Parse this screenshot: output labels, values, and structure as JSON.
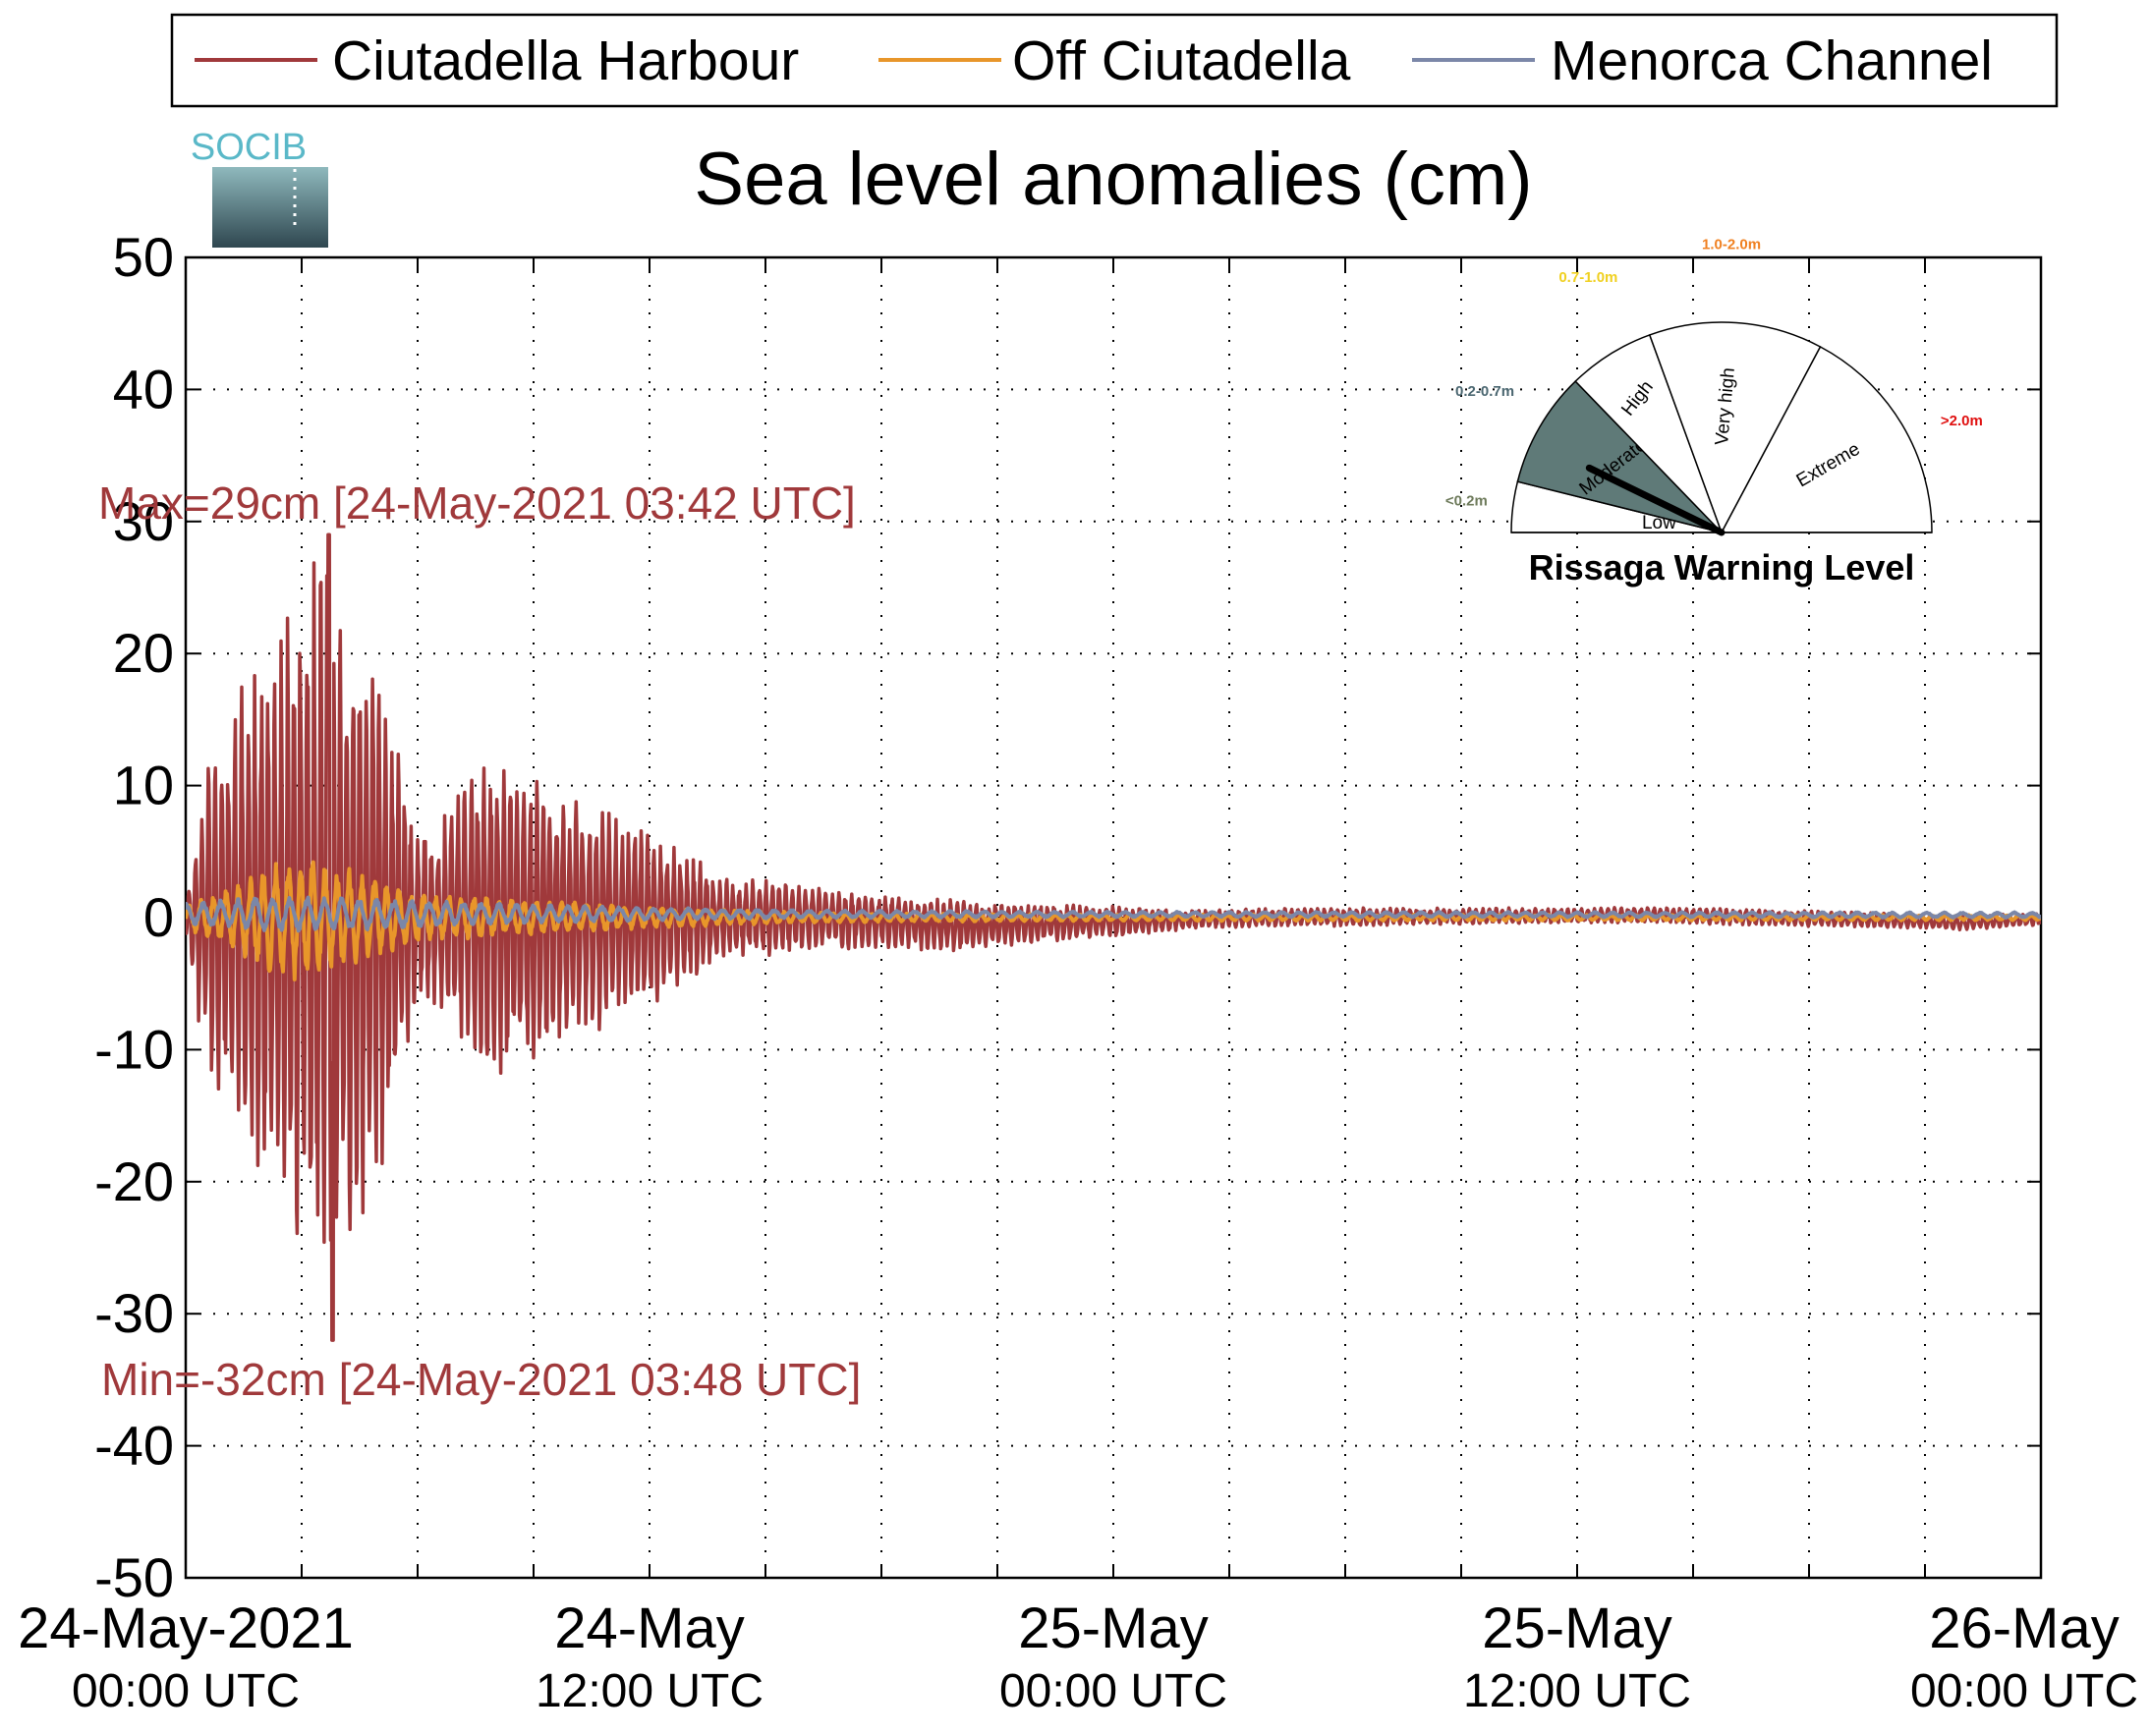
{
  "chart_data": {
    "type": "line",
    "title": "Sea level anomalies (cm)",
    "ylim": [
      -50,
      50
    ],
    "yticks": [
      50,
      40,
      30,
      20,
      10,
      0,
      -10,
      -20,
      -30,
      -40,
      -50
    ],
    "x_range_hours": [
      0,
      48
    ],
    "xtick_labels": [
      {
        "line1": "24-May-2021",
        "line2": "00:00 UTC"
      },
      {
        "line1": "24-May",
        "line2": "12:00 UTC"
      },
      {
        "line1": "25-May",
        "line2": "00:00 UTC"
      },
      {
        "line1": "25-May",
        "line2": "12:00 UTC"
      },
      {
        "line1": "26-May",
        "line2": "00:00 UTC"
      }
    ],
    "xtick_hours": [
      0,
      12,
      24,
      36,
      48
    ],
    "minor_grid_hours": [
      3,
      6,
      9,
      15,
      18,
      21,
      27,
      30,
      33,
      39,
      42,
      45
    ],
    "grid": true,
    "legend_position": "top",
    "series": [
      {
        "name": "Ciutadella Harbour",
        "color": "#a0393b",
        "envelope": [
          [
            0,
            1
          ],
          [
            0.5,
            12
          ],
          [
            1,
            14
          ],
          [
            1.5,
            18
          ],
          [
            2,
            20
          ],
          [
            2.5,
            22
          ],
          [
            3,
            28
          ],
          [
            3.5,
            28
          ],
          [
            4,
            25
          ],
          [
            4.5,
            25
          ],
          [
            5,
            20
          ],
          [
            5.5,
            14
          ],
          [
            6,
            7
          ],
          [
            6.5,
            7
          ],
          [
            7,
            10
          ],
          [
            7.5,
            12
          ],
          [
            8,
            13
          ],
          [
            8.5,
            12
          ],
          [
            9,
            12
          ],
          [
            9.5,
            11
          ],
          [
            10,
            10
          ],
          [
            11,
            8
          ],
          [
            12,
            7
          ],
          [
            13,
            5
          ],
          [
            14,
            3
          ],
          [
            15,
            3
          ],
          [
            16,
            2.5
          ],
          [
            18,
            2
          ],
          [
            20,
            2
          ],
          [
            22,
            1.5
          ],
          [
            24,
            1.2
          ],
          [
            26,
            0.7
          ],
          [
            30,
            0.7
          ],
          [
            36,
            0.6
          ],
          [
            42,
            0.6
          ],
          [
            48,
            0.5
          ]
        ],
        "offsets": [
          [
            0,
            0
          ],
          [
            12,
            0
          ],
          [
            16,
            0
          ],
          [
            20,
            -0.6
          ],
          [
            24,
            -0.3
          ],
          [
            28,
            0
          ],
          [
            38,
            0.2
          ],
          [
            44,
            -0.2
          ],
          [
            46,
            -0.4
          ],
          [
            48,
            -0.1
          ]
        ],
        "max_label": "Max=29cm [24-May-2021 03:42 UTC]",
        "min_label": "Min=-32cm [24-May-2021 03:48 UTC]",
        "max": {
          "hours": 3.7,
          "value": 29
        },
        "min": {
          "hours": 3.8,
          "value": -32
        }
      },
      {
        "name": "Off Ciutadella",
        "color": "#e8962a",
        "envelope": [
          [
            0,
            1
          ],
          [
            1,
            2
          ],
          [
            2,
            4
          ],
          [
            3,
            5
          ],
          [
            4,
            4
          ],
          [
            5,
            3
          ],
          [
            6,
            2
          ],
          [
            8,
            1.5
          ],
          [
            10,
            1.2
          ],
          [
            12,
            0.8
          ],
          [
            16,
            0.4
          ],
          [
            20,
            0.3
          ],
          [
            24,
            0.25
          ],
          [
            48,
            0.2
          ]
        ],
        "offsets": [
          [
            0,
            0
          ],
          [
            48,
            0
          ]
        ]
      },
      {
        "name": "Menorca Channel",
        "color": "#7b87a8",
        "envelope": [
          [
            0,
            0.8
          ],
          [
            2,
            1.3
          ],
          [
            4,
            1.3
          ],
          [
            6,
            1
          ],
          [
            8,
            0.8
          ],
          [
            12,
            0.5
          ],
          [
            16,
            0.3
          ],
          [
            24,
            0.2
          ],
          [
            48,
            0.2
          ]
        ],
        "offsets": [
          [
            0,
            0.3
          ],
          [
            48,
            0.2
          ]
        ]
      }
    ]
  },
  "legend": {
    "items": [
      {
        "label": "Ciutadella Harbour",
        "color": "#a0393b"
      },
      {
        "label": "Off Ciutadella",
        "color": "#e8962a"
      },
      {
        "label": "Menorca Channel",
        "color": "#7b87a8"
      }
    ]
  },
  "logo": {
    "text": "SOCIB"
  },
  "gauge": {
    "title": "Rissaga Warning Level",
    "current_level": "Moderate",
    "sectors": [
      {
        "name": "Low",
        "range": "<0.2m",
        "range_color": "#6d7a5a",
        "fill": "#ffffff"
      },
      {
        "name": "Moderate",
        "range": "0.2-0.7m",
        "range_color": "#4a6670",
        "fill": "#5f7a78"
      },
      {
        "name": "High",
        "range": "0.7-1.0m",
        "range_color": "#f0d020",
        "fill": "#ffffff"
      },
      {
        "name": "Very high",
        "range": "1.0-2.0m",
        "range_color": "#f08020",
        "fill": "#ffffff"
      },
      {
        "name": "Extreme",
        "range": ">2.0m",
        "range_color": "#e01010",
        "fill": "#ffffff"
      }
    ]
  }
}
